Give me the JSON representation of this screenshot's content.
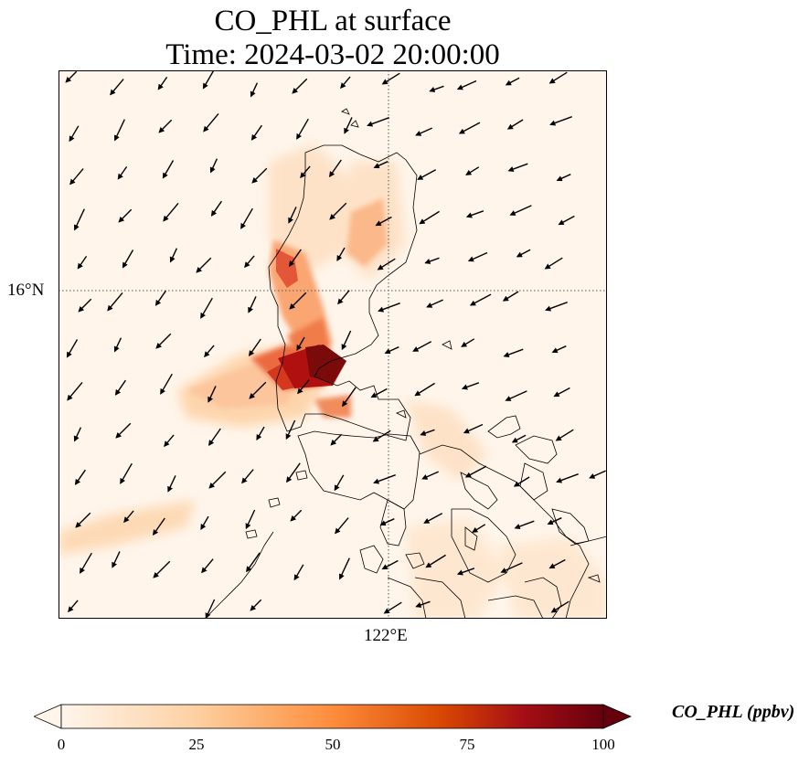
{
  "figure": {
    "title_line1": "CO_PHL at surface",
    "title_line2": "Time: 2024-03-02 20:00:00",
    "lat_tick_label": "16°N",
    "lon_tick_label": "122°E"
  },
  "map": {
    "field": "CO_PHL concentration at surface",
    "overlays": [
      "coastlines",
      "wind-vectors",
      "dotted-graticule"
    ],
    "gridlines": {
      "latitude": "16°N",
      "longitude": "122°E"
    }
  },
  "colorbar": {
    "label": "CO_PHL (ppbv)",
    "ticks": [
      "0",
      "25",
      "50",
      "75",
      "100"
    ],
    "min": 0,
    "max": 100,
    "extend": "both",
    "colors": [
      "#fff5eb",
      "#fdd0a2",
      "#fd8d3c",
      "#d94801",
      "#a50f15",
      "#67000d"
    ]
  }
}
